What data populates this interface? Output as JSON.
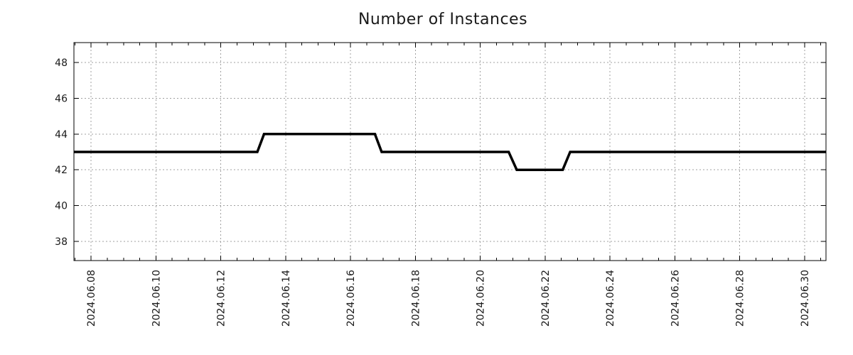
{
  "chart_data": {
    "type": "line",
    "title": "Number of Instances",
    "xlabel": "",
    "ylabel": "",
    "background": "#ffffff",
    "text_color": "#1a1a1a",
    "grid": {
      "visible": true,
      "style": "dotted",
      "color": "#a0a0a0"
    },
    "x_axis": {
      "tick_labels": [
        "2024.06.08",
        "2024.06.10",
        "2024.06.12",
        "2024.06.14",
        "2024.06.16",
        "2024.06.18",
        "2024.06.20",
        "2024.06.22",
        "2024.06.24",
        "2024.06.26",
        "2024.06.28",
        "2024.06.30"
      ],
      "major_tick_interval_days": 2,
      "minor_tick_interval_days": 0.5,
      "day_zero": "2024-06-08",
      "range_days": [
        -0.53,
        22.66
      ]
    },
    "y_axis": {
      "ticks": [
        38,
        40,
        42,
        44,
        46,
        48
      ],
      "range": [
        36.93,
        49.11
      ]
    },
    "series": [
      {
        "name": "instances",
        "color": "#000000",
        "line_width": 3.5,
        "points": [
          {
            "date": "2024-06-07 11:20",
            "value": 43
          },
          {
            "date": "2024-06-13 03:00",
            "value": 43
          },
          {
            "date": "2024-06-13 08:00",
            "value": 44
          },
          {
            "date": "2024-06-16 18:00",
            "value": 44
          },
          {
            "date": "2024-06-16 23:00",
            "value": 43
          },
          {
            "date": "2024-06-20 21:00",
            "value": 43
          },
          {
            "date": "2024-06-21 03:00",
            "value": 42
          },
          {
            "date": "2024-06-22 13:00",
            "value": 42
          },
          {
            "date": "2024-06-22 18:30",
            "value": 43
          },
          {
            "date": "2024-06-30 16:00",
            "value": 43
          }
        ]
      }
    ]
  }
}
